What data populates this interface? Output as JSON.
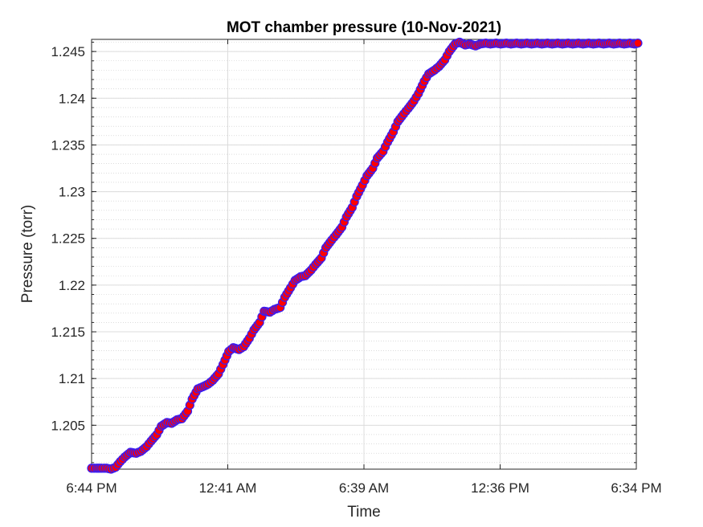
{
  "chart_data": {
    "type": "scatter",
    "title": "MOT chamber pressure (10-Nov-2021)",
    "xlabel": "Time",
    "ylabel": "Pressure (torr)",
    "x_ticks": [
      "6:44 PM",
      "12:41 AM",
      "6:39 AM",
      "12:36 PM",
      "6:34 PM"
    ],
    "y_ticks": [
      "1.205",
      "1.21",
      "1.215",
      "1.22",
      "1.225",
      "1.23",
      "1.235",
      "1.24",
      "1.245"
    ],
    "xlim": [
      "6:44 PM",
      "6:34 PM"
    ],
    "ylim": [
      1.2003,
      1.2463
    ],
    "grid": true,
    "minor_grid": true,
    "marker_face": "#ff0000",
    "marker_edge": "#3b1df0",
    "series": [
      {
        "x_hours": [
          0,
          0.22,
          0.45,
          0.65,
          0.85,
          1.05,
          1.25,
          1.45,
          1.7,
          1.95,
          2.15,
          2.4,
          2.6,
          2.85,
          3.05,
          3.3,
          3.5,
          3.75,
          3.95,
          4.2,
          4.4,
          4.65,
          4.85,
          5.1,
          5.3,
          5.55,
          5.75,
          6.0,
          6.2,
          6.45,
          6.65,
          6.9,
          7.1,
          7.35,
          7.55,
          7.8,
          8.0,
          8.25,
          8.45,
          8.7,
          8.9,
          9.15,
          9.35,
          9.6,
          9.8,
          10.05,
          10.25,
          10.5,
          10.7,
          10.95,
          11.15,
          11.4,
          11.6,
          11.85,
          12.05,
          12.3,
          12.5,
          12.75,
          12.95,
          13.2,
          13.4,
          13.65,
          13.85,
          14.1,
          14.3,
          14.55,
          14.75,
          15.0,
          15.2,
          15.45,
          15.65,
          15.9,
          16.1,
          16.35,
          16.55,
          16.8,
          17.0,
          17.25,
          17.45,
          17.7,
          17.9,
          18.15,
          18.35,
          18.6,
          18.8,
          19.05,
          19.25,
          19.5,
          19.7,
          19.95,
          20.15,
          20.4,
          20.6,
          20.85,
          21.05,
          21.3,
          21.5,
          21.75,
          21.95,
          22.2,
          22.4,
          22.65,
          22.85,
          23.1,
          23.3,
          23.55,
          23.75,
          23.9
        ],
        "values": [
          1.2004,
          1.2004,
          1.2004,
          1.2004,
          1.2003,
          1.2005,
          1.2011,
          1.2016,
          1.2021,
          1.202,
          1.2022,
          1.2027,
          1.2033,
          1.204,
          1.2049,
          1.2053,
          1.2052,
          1.2056,
          1.2057,
          1.2065,
          1.2078,
          1.2089,
          1.2091,
          1.2094,
          1.2098,
          1.2105,
          1.2115,
          1.2129,
          1.2133,
          1.2131,
          1.2134,
          1.2143,
          1.2152,
          1.216,
          1.2172,
          1.2171,
          1.2174,
          1.2176,
          1.2187,
          1.2197,
          1.2205,
          1.2209,
          1.221,
          1.2216,
          1.2222,
          1.2229,
          1.224,
          1.2248,
          1.2254,
          1.2262,
          1.2273,
          1.2283,
          1.2295,
          1.2307,
          1.2317,
          1.2325,
          1.2336,
          1.2343,
          1.2353,
          1.2364,
          1.2375,
          1.2383,
          1.2389,
          1.2397,
          1.2405,
          1.2418,
          1.2426,
          1.243,
          1.2434,
          1.2441,
          1.245,
          1.2458,
          1.246,
          1.2457,
          1.2458,
          1.2456,
          1.2458,
          1.2459,
          1.2458,
          1.2459,
          1.2458,
          1.2459,
          1.2458,
          1.2459,
          1.2458,
          1.2459,
          1.2458,
          1.2459,
          1.2458,
          1.2459,
          1.2458,
          1.2459,
          1.2458,
          1.2459,
          1.2458,
          1.2459,
          1.2458,
          1.2459,
          1.2458,
          1.2459,
          1.2458,
          1.2459,
          1.2458,
          1.2459,
          1.2458,
          1.2459,
          1.2458,
          1.2459
        ]
      }
    ]
  }
}
